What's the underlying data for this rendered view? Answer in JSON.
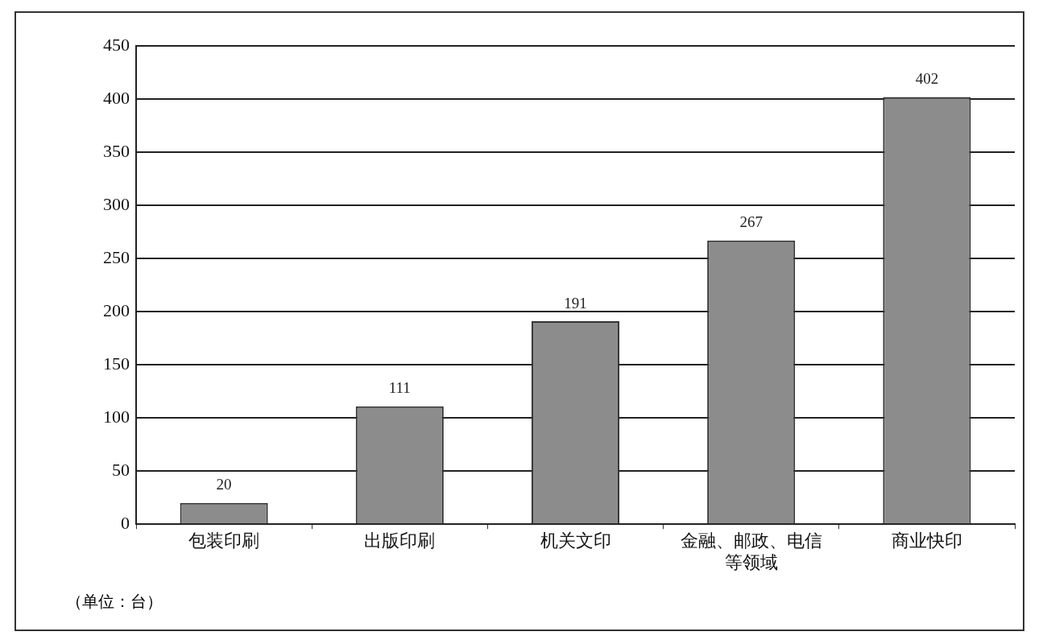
{
  "chart_data": {
    "type": "bar",
    "categories": [
      "包装印刷",
      "出版印刷",
      "机关文印",
      "金融、邮政、电信等领域",
      "商业快印"
    ],
    "values": [
      20,
      111,
      191,
      267,
      402
    ],
    "color": "#8c8c8c",
    "ylim": [
      0,
      450
    ],
    "yticks": [
      0,
      50,
      100,
      150,
      200,
      250,
      300,
      350,
      400,
      450
    ],
    "grid": "y",
    "data_labels": true,
    "legend": false,
    "annotations": [
      "（单位：台）"
    ]
  }
}
